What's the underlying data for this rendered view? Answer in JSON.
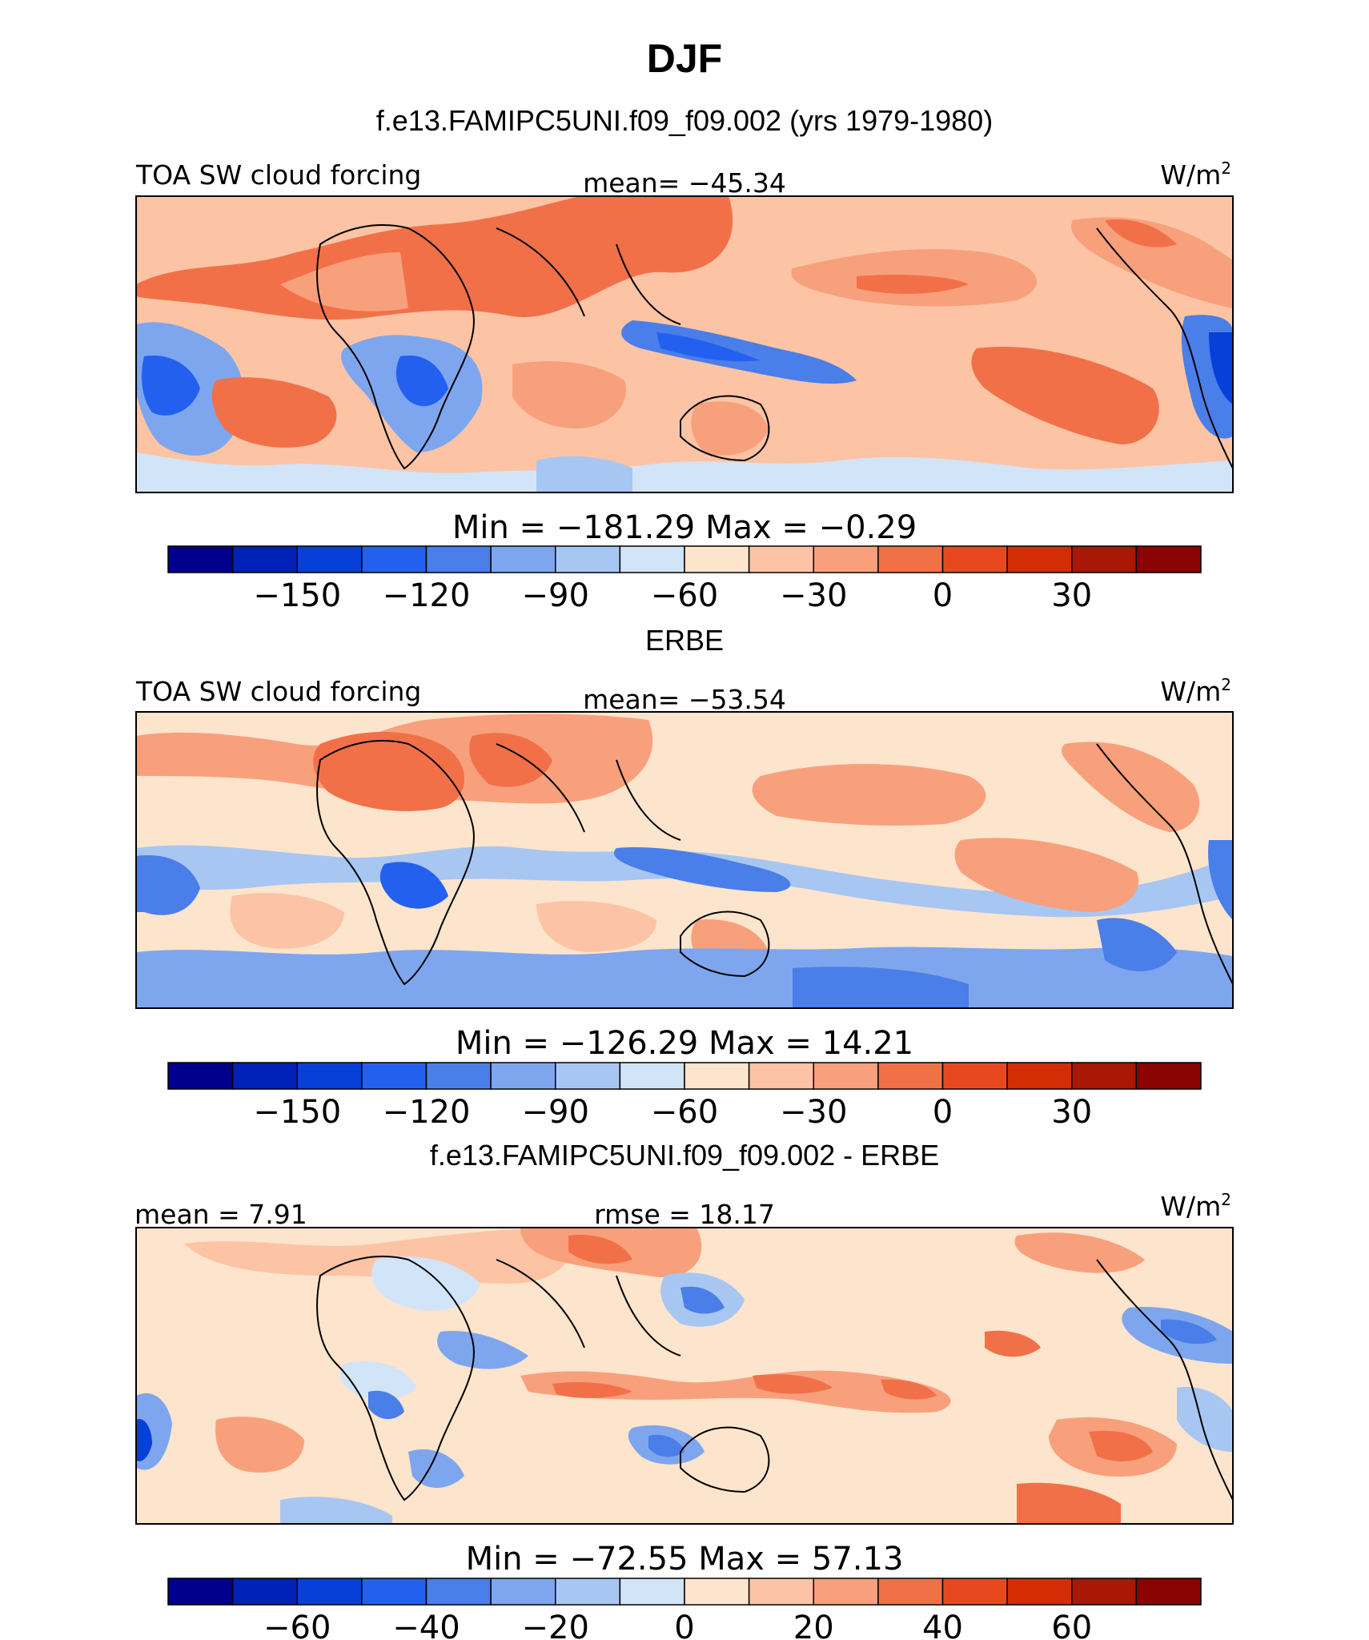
{
  "page": {
    "title": "DJF",
    "subtitle": "f.e13.FAMIPC5UNI.f09_f09.002 (yrs 1979-1980)"
  },
  "chart_data": [
    {
      "type": "heatmap",
      "panel_title": "",
      "left_label": "TOA SW cloud forcing",
      "center_label": "mean= −45.34",
      "units": "W/m",
      "units_sup": "2",
      "minmax": "Min = −181.29 Max = −0.29",
      "colorbar_ticks": [
        "−150",
        "−120",
        "−90",
        "−60",
        "−30",
        "0",
        "30"
      ],
      "levels": [
        -165,
        -150,
        -135,
        -120,
        -105,
        -90,
        -75,
        -60,
        -45,
        -30,
        -15,
        0,
        15,
        30,
        45
      ],
      "colors": [
        "#00008c",
        "#0022b8",
        "#0740d8",
        "#2460f0",
        "#4a7ee8",
        "#7ea6ee",
        "#a8c6f2",
        "#d2e4f8",
        "#fde4cc",
        "#fcc4a4",
        "#f8a07c",
        "#f27048",
        "#e84820",
        "#d42c04",
        "#a81804",
        "#8a0404"
      ]
    },
    {
      "type": "heatmap",
      "panel_title": "ERBE",
      "left_label": "TOA SW cloud forcing",
      "center_label": "mean= −53.54",
      "units": "W/m",
      "units_sup": "2",
      "minmax": "Min = −126.29 Max = 14.21",
      "colorbar_ticks": [
        "−150",
        "−120",
        "−90",
        "−60",
        "−30",
        "0",
        "30"
      ],
      "levels": [
        -165,
        -150,
        -135,
        -120,
        -105,
        -90,
        -75,
        -60,
        -45,
        -30,
        -15,
        0,
        15,
        30,
        45
      ],
      "colors": [
        "#00008c",
        "#0022b8",
        "#0740d8",
        "#2460f0",
        "#4a7ee8",
        "#7ea6ee",
        "#a8c6f2",
        "#d2e4f8",
        "#fde4cc",
        "#fcc4a4",
        "#f8a07c",
        "#f27048",
        "#e84820",
        "#d42c04",
        "#a81804",
        "#8a0404"
      ]
    },
    {
      "type": "heatmap",
      "panel_title": "f.e13.FAMIPC5UNI.f09_f09.002 - ERBE",
      "left_label": "mean = 7.91",
      "center_label": "rmse = 18.17",
      "units": "W/m",
      "units_sup": "2",
      "minmax": "Min = −72.55 Max = 57.13",
      "colorbar_ticks": [
        "−60",
        "−40",
        "−20",
        "0",
        "20",
        "40",
        "60"
      ],
      "levels": [
        -70,
        -60,
        -50,
        -40,
        -30,
        -20,
        -10,
        0,
        10,
        20,
        30,
        40,
        50,
        60,
        70
      ],
      "colors": [
        "#00008c",
        "#0022b8",
        "#0740d8",
        "#2460f0",
        "#4a7ee8",
        "#7ea6ee",
        "#a8c6f2",
        "#d2e4f8",
        "#fde4cc",
        "#fcc4a4",
        "#f8a07c",
        "#f27048",
        "#e84820",
        "#d42c04",
        "#a81804",
        "#8a0404"
      ]
    }
  ]
}
